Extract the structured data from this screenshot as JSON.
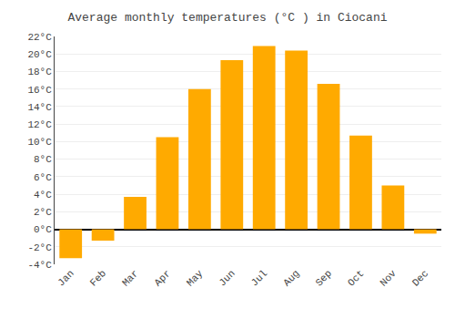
{
  "chart_data": {
    "type": "bar",
    "title": "Average monthly temperatures (°C ) in Ciocani",
    "categories": [
      "Jan",
      "Feb",
      "Mar",
      "Apr",
      "May",
      "Jun",
      "Jul",
      "Aug",
      "Sep",
      "Oct",
      "Nov",
      "Dec"
    ],
    "values": [
      -3.3,
      -1.3,
      3.7,
      10.5,
      16.0,
      19.3,
      20.9,
      20.4,
      16.6,
      10.7,
      5.0,
      -0.5
    ],
    "color": "#FFAA00",
    "ylim": [
      -4,
      22
    ],
    "yticks": [
      {
        "value": -4,
        "label": "-4°C"
      },
      {
        "value": -2,
        "label": "-2°C"
      },
      {
        "value": 0,
        "label": "0°C"
      },
      {
        "value": 2,
        "label": "2°C"
      },
      {
        "value": 4,
        "label": "4°C"
      },
      {
        "value": 6,
        "label": "6°C"
      },
      {
        "value": 8,
        "label": "8°C"
      },
      {
        "value": 10,
        "label": "10°C"
      },
      {
        "value": 12,
        "label": "12°C"
      },
      {
        "value": 14,
        "label": "14°C"
      },
      {
        "value": 16,
        "label": "16°C"
      },
      {
        "value": 18,
        "label": "18°C"
      },
      {
        "value": 20,
        "label": "20°C"
      },
      {
        "value": 22,
        "label": "22°C"
      }
    ],
    "grid": true
  }
}
